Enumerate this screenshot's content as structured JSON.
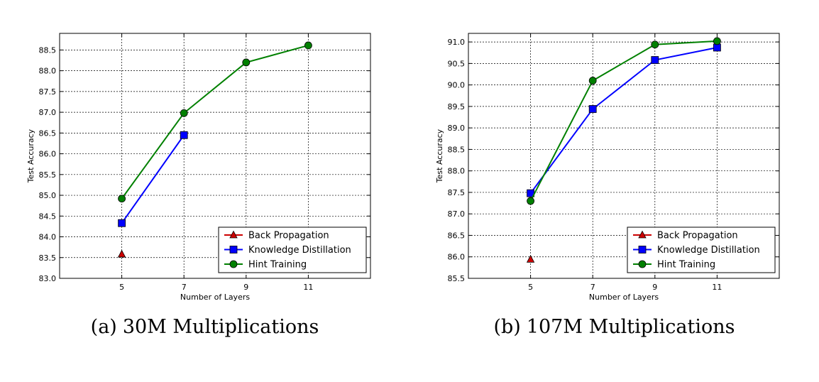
{
  "chart_data": [
    {
      "type": "line",
      "panel_tag": "(a)",
      "caption": "30M Multiplications",
      "xlabel": "Number of Layers",
      "ylabel": "Test Accuracy",
      "xlim": [
        3,
        13
      ],
      "ylim": [
        83.0,
        88.9
      ],
      "xticks": [
        "5",
        "7",
        "9",
        "11"
      ],
      "yticks": [
        "83.0",
        "83.5",
        "84.0",
        "84.5",
        "85.0",
        "85.5",
        "86.0",
        "86.5",
        "87.0",
        "87.5",
        "88.0",
        "88.5"
      ],
      "grid": true,
      "legend_position": "lower-right",
      "series": [
        {
          "name": "Back Propagation",
          "color": "#cc0000",
          "marker": "triangle",
          "x": [
            5
          ],
          "y": [
            83.58
          ]
        },
        {
          "name": "Knowledge Distillation",
          "color": "#0000ff",
          "marker": "square",
          "x": [
            5,
            7
          ],
          "y": [
            84.33,
            86.45
          ]
        },
        {
          "name": "Hint Training",
          "color": "#008000",
          "marker": "circle",
          "x": [
            5,
            7,
            9,
            11
          ],
          "y": [
            84.92,
            86.98,
            88.2,
            88.61
          ]
        }
      ]
    },
    {
      "type": "line",
      "panel_tag": "(b)",
      "caption": "107M Multiplications",
      "xlabel": "Number of Layers",
      "ylabel": "Test Accuracy",
      "xlim": [
        3,
        13
      ],
      "ylim": [
        85.5,
        91.2
      ],
      "xticks": [
        "5",
        "7",
        "9",
        "11"
      ],
      "yticks": [
        "85.5",
        "86.0",
        "86.5",
        "87.0",
        "87.5",
        "88.0",
        "88.5",
        "89.0",
        "89.5",
        "90.0",
        "90.5",
        "91.0"
      ],
      "grid": true,
      "legend_position": "lower-right",
      "series": [
        {
          "name": "Back Propagation",
          "color": "#cc0000",
          "marker": "triangle",
          "x": [
            5
          ],
          "y": [
            85.94
          ]
        },
        {
          "name": "Knowledge Distillation",
          "color": "#0000ff",
          "marker": "square",
          "x": [
            5,
            7,
            9,
            11
          ],
          "y": [
            87.48,
            89.44,
            90.58,
            90.87
          ]
        },
        {
          "name": "Hint Training",
          "color": "#008000",
          "marker": "circle",
          "x": [
            5,
            7,
            9,
            11
          ],
          "y": [
            87.3,
            90.1,
            90.94,
            91.02
          ]
        }
      ]
    }
  ]
}
